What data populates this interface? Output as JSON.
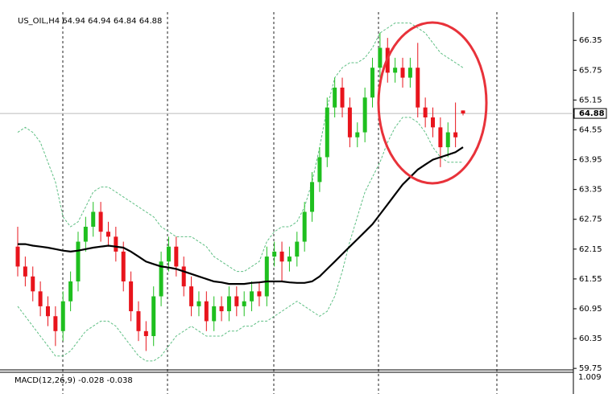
{
  "chart_data": {
    "type": "candlestick",
    "title": "US_OIL,H4 64.94 64.94 64.84 64.88",
    "indicator_label": "MACD(12,26,9) -0.028 -0.038",
    "indicator_axis_label": "1.009",
    "ylim": [
      59.72,
      66.92
    ],
    "yticks": [
      59.75,
      60.35,
      60.95,
      61.55,
      62.15,
      62.75,
      63.35,
      63.95,
      64.55,
      65.15,
      65.75,
      66.35
    ],
    "last_price": 64.88,
    "up_color": "#1fbf1f",
    "down_color": "#e8141c",
    "open": [
      62.2,
      61.8,
      61.6,
      61.3,
      61.0,
      60.8,
      60.5,
      61.1,
      61.5,
      62.3,
      62.6,
      62.9,
      62.5,
      62.4,
      62.1,
      61.5,
      60.9,
      60.5,
      60.4,
      61.2,
      61.9,
      62.2,
      61.8,
      61.4,
      61.0,
      61.1,
      60.7,
      61.0,
      60.9,
      61.2,
      61.0,
      61.1,
      61.3,
      61.2,
      62.0,
      62.1,
      61.9,
      62.0,
      62.3,
      62.9,
      63.5,
      64.0,
      65.0,
      65.4,
      65.0,
      64.4,
      64.5,
      65.2,
      65.8,
      66.2,
      65.7,
      65.8,
      65.6,
      65.8,
      65.0,
      64.8,
      64.6,
      64.2,
      64.5,
      64.94
    ],
    "high": [
      62.6,
      62.0,
      61.8,
      61.5,
      61.2,
      61.0,
      61.3,
      61.7,
      62.5,
      62.8,
      63.1,
      63.1,
      62.7,
      62.6,
      62.3,
      61.7,
      61.1,
      60.7,
      61.4,
      62.1,
      62.4,
      62.4,
      62.0,
      61.6,
      61.3,
      61.3,
      61.2,
      61.2,
      61.4,
      61.4,
      61.3,
      61.5,
      61.5,
      62.2,
      62.3,
      62.3,
      62.2,
      62.5,
      63.1,
      63.7,
      64.2,
      65.2,
      65.6,
      65.6,
      65.2,
      64.7,
      65.4,
      66.0,
      66.5,
      66.4,
      66.0,
      66.0,
      66.0,
      66.3,
      65.2,
      65.0,
      64.8,
      64.7,
      65.1,
      64.94
    ],
    "low": [
      61.6,
      61.4,
      61.1,
      60.8,
      60.6,
      60.2,
      60.3,
      60.9,
      61.3,
      62.1,
      62.4,
      62.3,
      62.2,
      61.9,
      61.3,
      60.7,
      60.3,
      60.1,
      60.2,
      61.0,
      61.7,
      61.6,
      61.2,
      60.8,
      60.8,
      60.5,
      60.5,
      60.7,
      60.7,
      60.8,
      60.8,
      60.9,
      61.0,
      61.0,
      61.8,
      61.5,
      61.7,
      61.8,
      62.1,
      62.7,
      63.3,
      63.8,
      64.8,
      64.8,
      64.2,
      64.2,
      64.3,
      65.0,
      65.6,
      65.5,
      65.5,
      65.4,
      65.4,
      64.8,
      64.6,
      64.4,
      63.8,
      64.0,
      64.2,
      64.84
    ],
    "close": [
      61.8,
      61.6,
      61.3,
      61.0,
      60.8,
      60.5,
      61.1,
      61.5,
      62.3,
      62.6,
      62.9,
      62.5,
      62.4,
      62.1,
      61.5,
      60.9,
      60.5,
      60.4,
      61.2,
      61.9,
      62.2,
      61.8,
      61.4,
      61.0,
      61.1,
      60.7,
      61.0,
      60.9,
      61.2,
      61.0,
      61.1,
      61.3,
      61.2,
      62.0,
      62.1,
      61.9,
      62.0,
      62.3,
      62.9,
      63.5,
      64.0,
      65.0,
      65.4,
      65.0,
      64.4,
      64.5,
      65.2,
      65.8,
      66.2,
      65.7,
      65.8,
      65.6,
      65.8,
      65.0,
      64.8,
      64.6,
      64.2,
      64.5,
      64.4,
      64.88
    ],
    "moving_average": {
      "color": "#000000",
      "values": [
        62.25,
        62.25,
        62.22,
        62.2,
        62.18,
        62.15,
        62.12,
        62.1,
        62.12,
        62.15,
        62.18,
        62.2,
        62.22,
        62.2,
        62.18,
        62.1,
        62.0,
        61.9,
        61.85,
        61.8,
        61.78,
        61.75,
        61.7,
        61.65,
        61.6,
        61.55,
        61.5,
        61.48,
        61.45,
        61.45,
        61.45,
        61.47,
        61.48,
        61.5,
        61.5,
        61.5,
        61.48,
        61.47,
        61.47,
        61.5,
        61.6,
        61.75,
        61.9,
        62.05,
        62.2,
        62.35,
        62.5,
        62.65,
        62.85,
        63.05,
        63.25,
        63.45,
        63.6,
        63.75,
        63.85,
        63.95,
        64.0,
        64.05,
        64.1,
        64.2
      ]
    },
    "bands": {
      "color": "#5fbf84",
      "upper": [
        64.5,
        64.6,
        64.5,
        64.3,
        63.9,
        63.5,
        62.8,
        62.6,
        62.7,
        63.0,
        63.3,
        63.4,
        63.4,
        63.3,
        63.2,
        63.1,
        63.0,
        62.9,
        62.8,
        62.6,
        62.5,
        62.4,
        62.4,
        62.4,
        62.3,
        62.2,
        62.0,
        61.9,
        61.8,
        61.7,
        61.7,
        61.8,
        61.9,
        62.3,
        62.5,
        62.6,
        62.6,
        62.7,
        63.0,
        63.5,
        64.2,
        65.0,
        65.6,
        65.8,
        65.9,
        65.9,
        66.0,
        66.2,
        66.5,
        66.6,
        66.7,
        66.7,
        66.7,
        66.6,
        66.5,
        66.3,
        66.1,
        66.0,
        65.9,
        65.8
      ],
      "lower": [
        61.0,
        60.8,
        60.6,
        60.4,
        60.2,
        60.0,
        60.0,
        60.1,
        60.3,
        60.5,
        60.6,
        60.7,
        60.7,
        60.6,
        60.4,
        60.2,
        60.0,
        59.9,
        59.9,
        60.0,
        60.2,
        60.4,
        60.5,
        60.6,
        60.5,
        60.4,
        60.4,
        60.4,
        60.5,
        60.5,
        60.6,
        60.6,
        60.7,
        60.7,
        60.8,
        60.9,
        61.0,
        61.1,
        61.0,
        60.9,
        60.8,
        60.9,
        61.2,
        61.7,
        62.3,
        62.8,
        63.3,
        63.6,
        63.9,
        64.3,
        64.6,
        64.8,
        64.8,
        64.7,
        64.5,
        64.2,
        64.0,
        63.9,
        63.9,
        63.9
      ]
    }
  }
}
